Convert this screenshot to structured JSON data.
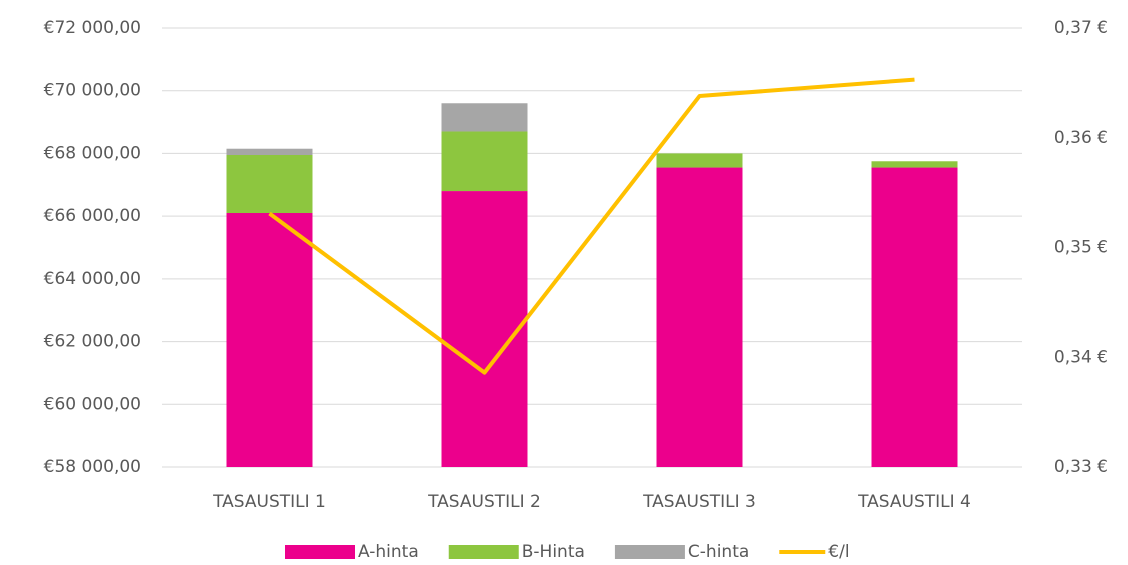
{
  "chart_data": {
    "type": "bar",
    "categories": [
      "TASAUSTILI 1",
      "TASAUSTILI 2",
      "TASAUSTILI 3",
      "TASAUSTILI 4"
    ],
    "stacked": true,
    "series": [
      {
        "name": "A-hinta",
        "type": "bar",
        "color": "#ec008c",
        "values": [
          66100,
          66800,
          67550,
          67550
        ]
      },
      {
        "name": "B-Hinta",
        "type": "bar",
        "color": "#8dc63f",
        "values": [
          1850,
          1900,
          450,
          200
        ]
      },
      {
        "name": "C-hinta",
        "type": "bar",
        "color": "#a6a6a6",
        "values": [
          200,
          900,
          0,
          0
        ]
      },
      {
        "name": "€/l",
        "type": "line",
        "axis": "y2",
        "color": "#ffc000",
        "values": [
          0.3531,
          0.3386,
          0.3638,
          0.3653
        ]
      }
    ],
    "ylim": [
      58000,
      72000
    ],
    "yticks": [
      {
        "value": 58000,
        "label": "€58 000,00"
      },
      {
        "value": 60000,
        "label": "€60 000,00"
      },
      {
        "value": 62000,
        "label": "€62 000,00"
      },
      {
        "value": 64000,
        "label": "€64 000,00"
      },
      {
        "value": 66000,
        "label": "€66 000,00"
      },
      {
        "value": 68000,
        "label": "€68 000,00"
      },
      {
        "value": 70000,
        "label": "€70 000,00"
      },
      {
        "value": 72000,
        "label": "€72 000,00"
      }
    ],
    "y2lim": [
      0.33,
      0.37
    ],
    "y2ticks": [
      {
        "value": 0.33,
        "label": "0,33 €"
      },
      {
        "value": 0.34,
        "label": "0,34 €"
      },
      {
        "value": 0.35,
        "label": "0,35 €"
      },
      {
        "value": 0.36,
        "label": "0,36 €"
      },
      {
        "value": 0.37,
        "label": "0,37 €"
      }
    ],
    "grid": true,
    "legend": "bottom"
  }
}
